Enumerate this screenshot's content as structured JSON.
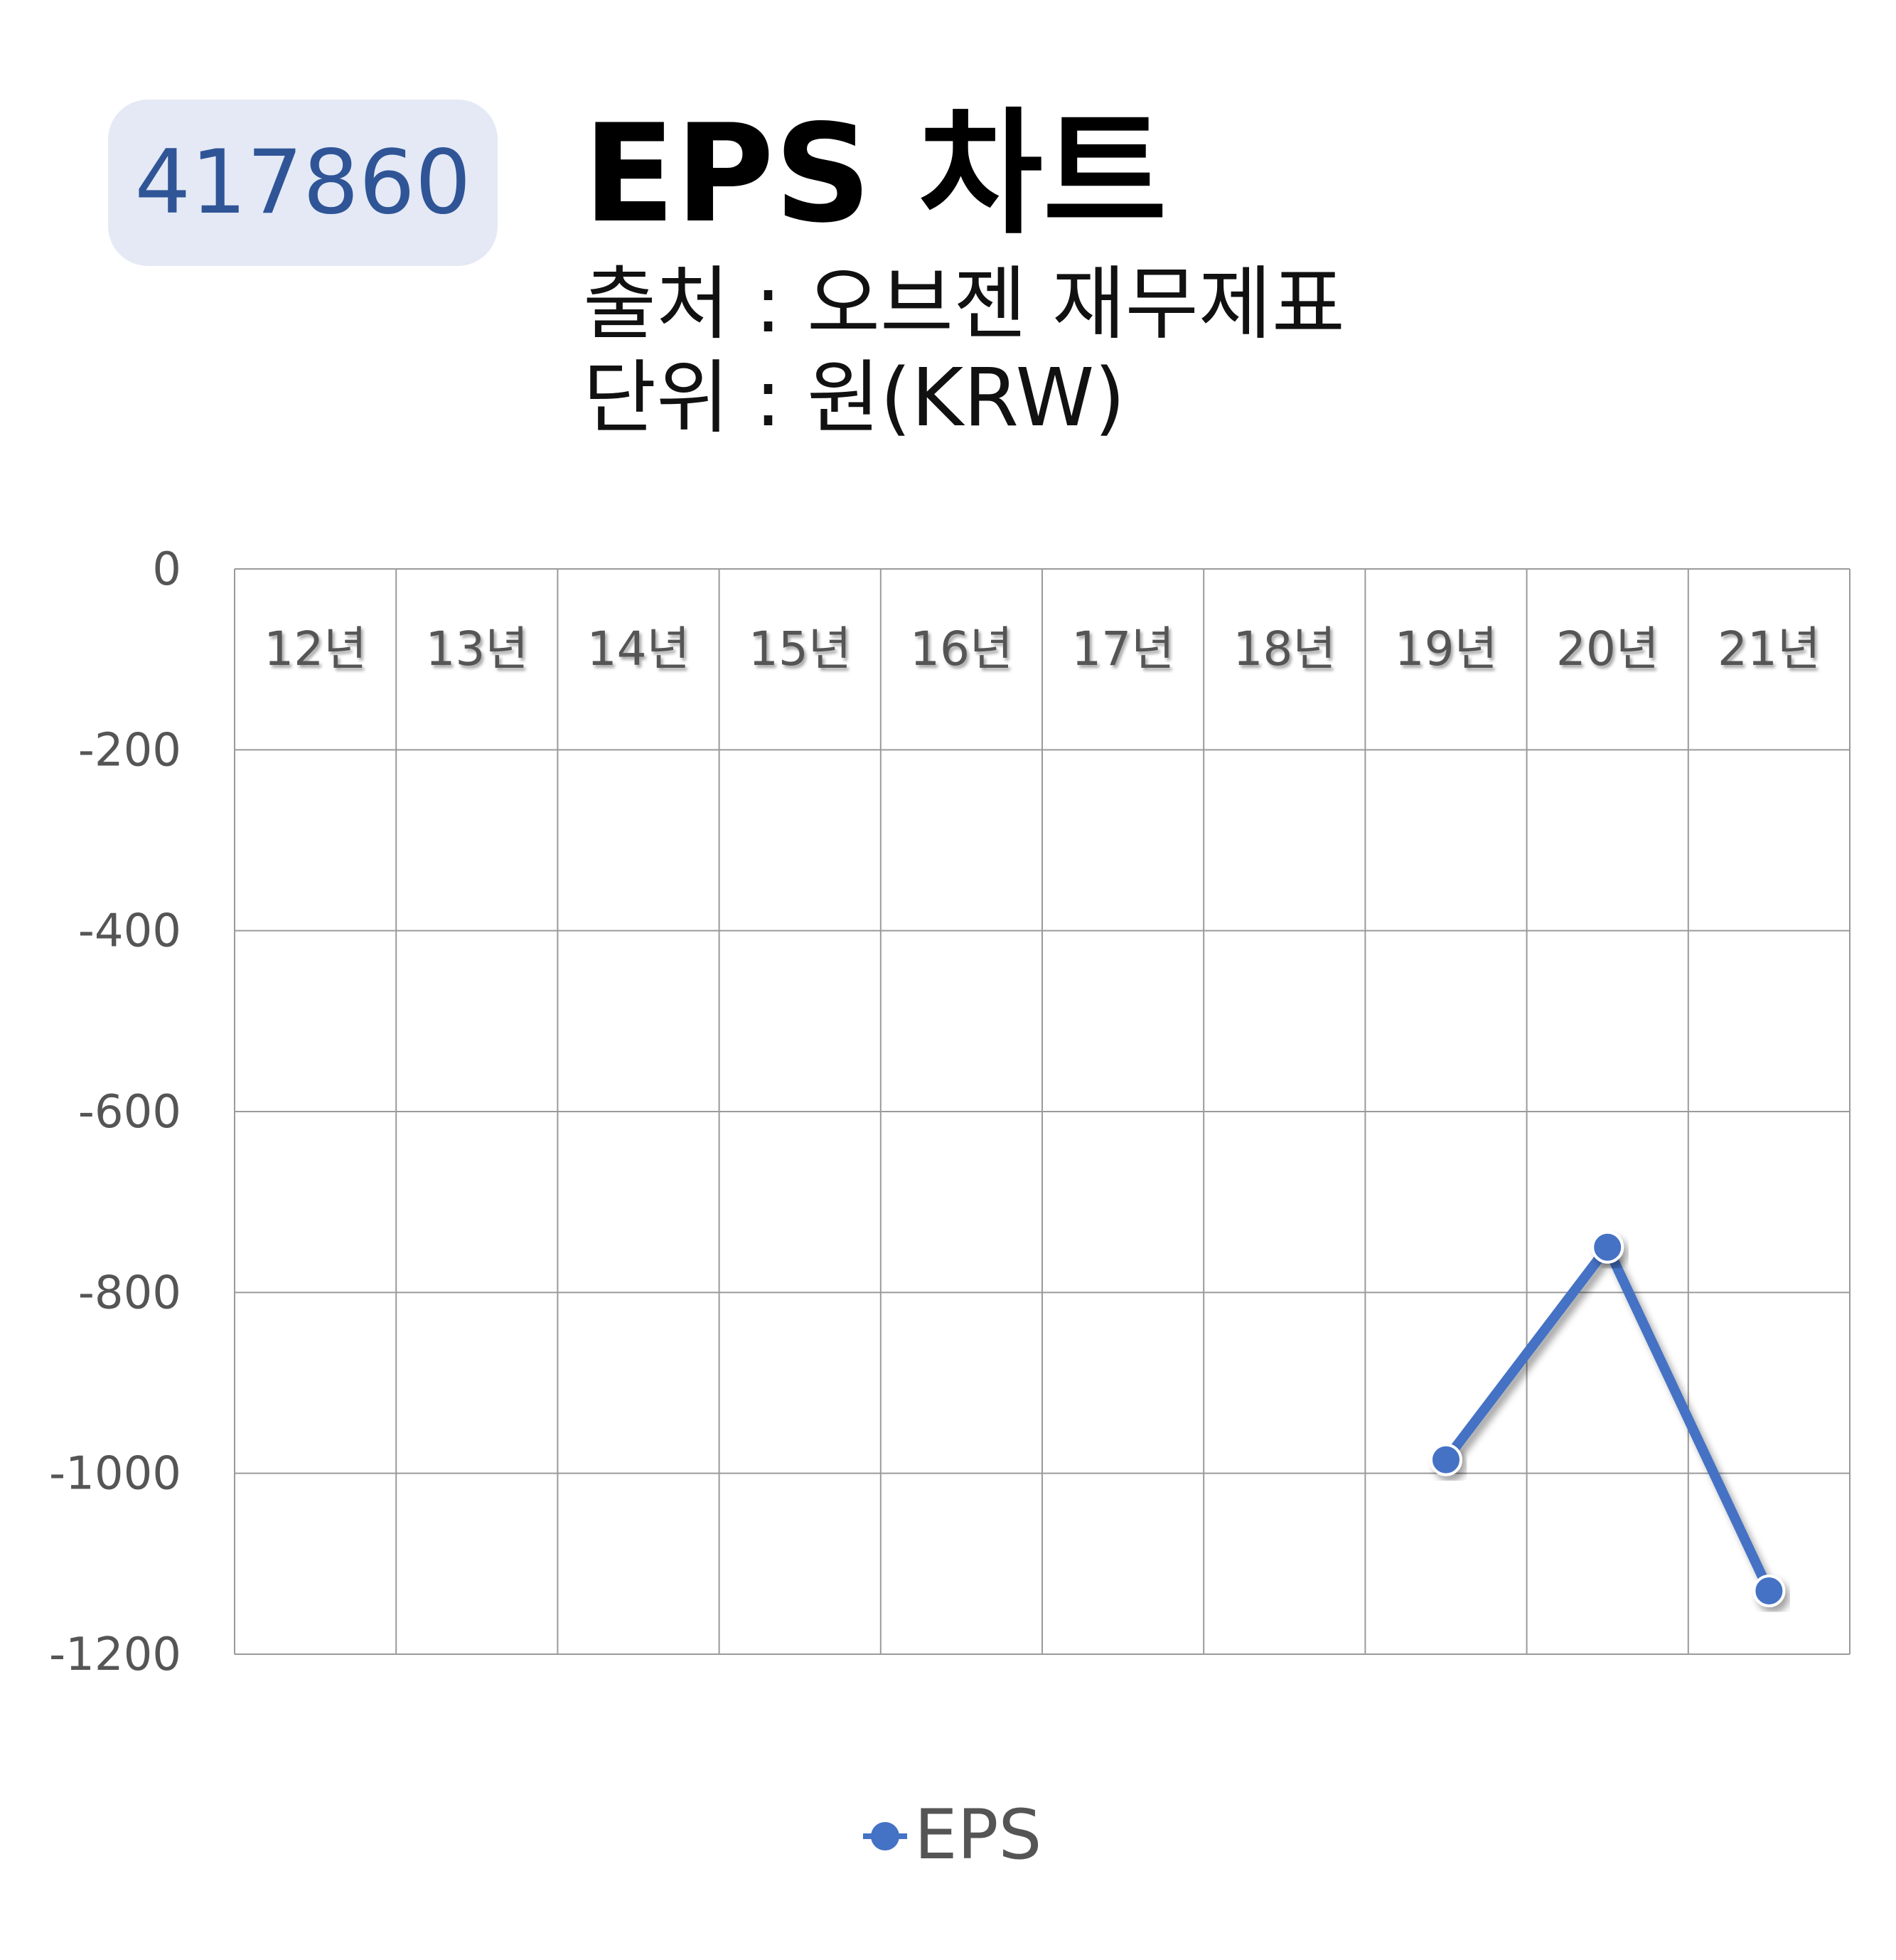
{
  "badge": {
    "code": "417860"
  },
  "header": {
    "title": "EPS 차트",
    "source": "출처 : 오브젠 재무제표",
    "unit": "단위 : 원(KRW)"
  },
  "colors": {
    "series": "#4472c4",
    "badge_bg": "#e4e9f5",
    "badge_text": "#2f5597",
    "grid": "#9a9a9a",
    "tick": "#555555"
  },
  "chart_data": {
    "type": "line",
    "categories": [
      "12년",
      "13년",
      "14년",
      "15년",
      "16년",
      "17년",
      "18년",
      "19년",
      "20년",
      "21년"
    ],
    "series": [
      {
        "name": "EPS",
        "values": [
          null,
          null,
          null,
          null,
          null,
          null,
          null,
          -985,
          -750,
          -1130
        ]
      }
    ],
    "yticks": [
      "0",
      "-200",
      "-400",
      "-600",
      "-800",
      "-1000",
      "-1200"
    ],
    "ylim": [
      -1200,
      0
    ],
    "grid": true,
    "legend": "bottom",
    "xaxis_position": "top"
  }
}
